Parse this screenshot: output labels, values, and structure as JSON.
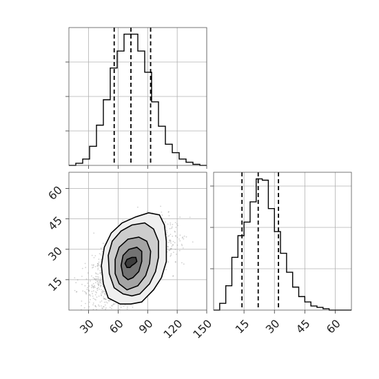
{
  "chart_data": {
    "type": "corner",
    "grid": true,
    "quantile_lines": "dashed",
    "parameters": [
      {
        "id": "x",
        "range": [
          10,
          150
        ],
        "tick_values": [
          30,
          60,
          90,
          120,
          150
        ],
        "tick_labels": [
          "30",
          "60",
          "90",
          "120",
          "150"
        ],
        "quantiles": [
          56,
          73,
          93
        ],
        "histogram": {
          "bin_edges": [
            10,
            17,
            24,
            31,
            38,
            45,
            52,
            59,
            66,
            73,
            80,
            87,
            94,
            101,
            108,
            115,
            122,
            129,
            136,
            143,
            150
          ],
          "counts": [
            0,
            2,
            6,
            18,
            38,
            62,
            92,
            108,
            124,
            124,
            108,
            88,
            60,
            37,
            20,
            12,
            6,
            3,
            1,
            0
          ]
        }
      },
      {
        "id": "y",
        "range": [
          0,
          68
        ],
        "tick_values": [
          15,
          30,
          45,
          60
        ],
        "tick_labels": [
          "15",
          "30",
          "45",
          "60"
        ],
        "quantiles": [
          14,
          22,
          32
        ],
        "histogram": {
          "bin_edges": [
            0,
            3,
            6,
            9,
            12,
            15,
            18,
            21,
            24,
            27,
            30,
            33,
            36,
            39,
            42,
            45,
            48,
            51,
            54,
            57,
            60,
            63,
            66,
            68
          ],
          "counts": [
            0,
            5,
            18,
            39,
            55,
            65,
            80,
            97,
            96,
            75,
            58,
            42,
            28,
            17,
            10,
            6,
            3,
            2,
            1,
            0,
            0,
            0,
            0
          ]
        }
      }
    ],
    "joint": {
      "x_center": 73,
      "y_center": 23,
      "contours": [
        [
          [
            74,
            22
          ],
          [
            77,
            23
          ],
          [
            79,
            24
          ],
          [
            78,
            26
          ],
          [
            74,
            26
          ],
          [
            69,
            25
          ],
          [
            67,
            23
          ],
          [
            69,
            21
          ],
          [
            72,
            21
          ]
        ],
        [
          [
            75,
            16
          ],
          [
            81,
            19
          ],
          [
            84,
            24
          ],
          [
            84,
            29
          ],
          [
            79,
            31
          ],
          [
            71,
            30
          ],
          [
            65,
            27
          ],
          [
            63,
            22
          ],
          [
            65,
            17
          ],
          [
            70,
            15
          ]
        ],
        [
          [
            80,
            12
          ],
          [
            88,
            17
          ],
          [
            92,
            23
          ],
          [
            93,
            29
          ],
          [
            89,
            34
          ],
          [
            81,
            36
          ],
          [
            70,
            35
          ],
          [
            61,
            31
          ],
          [
            57,
            25
          ],
          [
            57,
            18
          ],
          [
            61,
            13
          ],
          [
            69,
            10
          ]
        ],
        [
          [
            82,
            8
          ],
          [
            92,
            13
          ],
          [
            98,
            19
          ],
          [
            101,
            26
          ],
          [
            101,
            34
          ],
          [
            96,
            40
          ],
          [
            87,
            43
          ],
          [
            74,
            42
          ],
          [
            63,
            39
          ],
          [
            54,
            34
          ],
          [
            50,
            27
          ],
          [
            51,
            18
          ],
          [
            56,
            11
          ],
          [
            65,
            8
          ],
          [
            74,
            7
          ]
        ],
        [
          [
            84,
            4
          ],
          [
            96,
            10
          ],
          [
            104,
            16
          ],
          [
            109,
            24
          ],
          [
            109,
            34
          ],
          [
            107,
            42
          ],
          [
            102,
            47
          ],
          [
            91,
            48
          ],
          [
            78,
            46
          ],
          [
            64,
            43
          ],
          [
            53,
            38
          ],
          [
            46,
            31
          ],
          [
            43,
            22
          ],
          [
            45,
            13
          ],
          [
            50,
            6
          ],
          [
            62,
            3
          ],
          [
            73,
            3
          ]
        ]
      ],
      "density_fills": [
        "#efefef",
        "#cdcdcd",
        "#a4a4a4",
        "#737373",
        "#3d3d3d"
      ]
    }
  }
}
